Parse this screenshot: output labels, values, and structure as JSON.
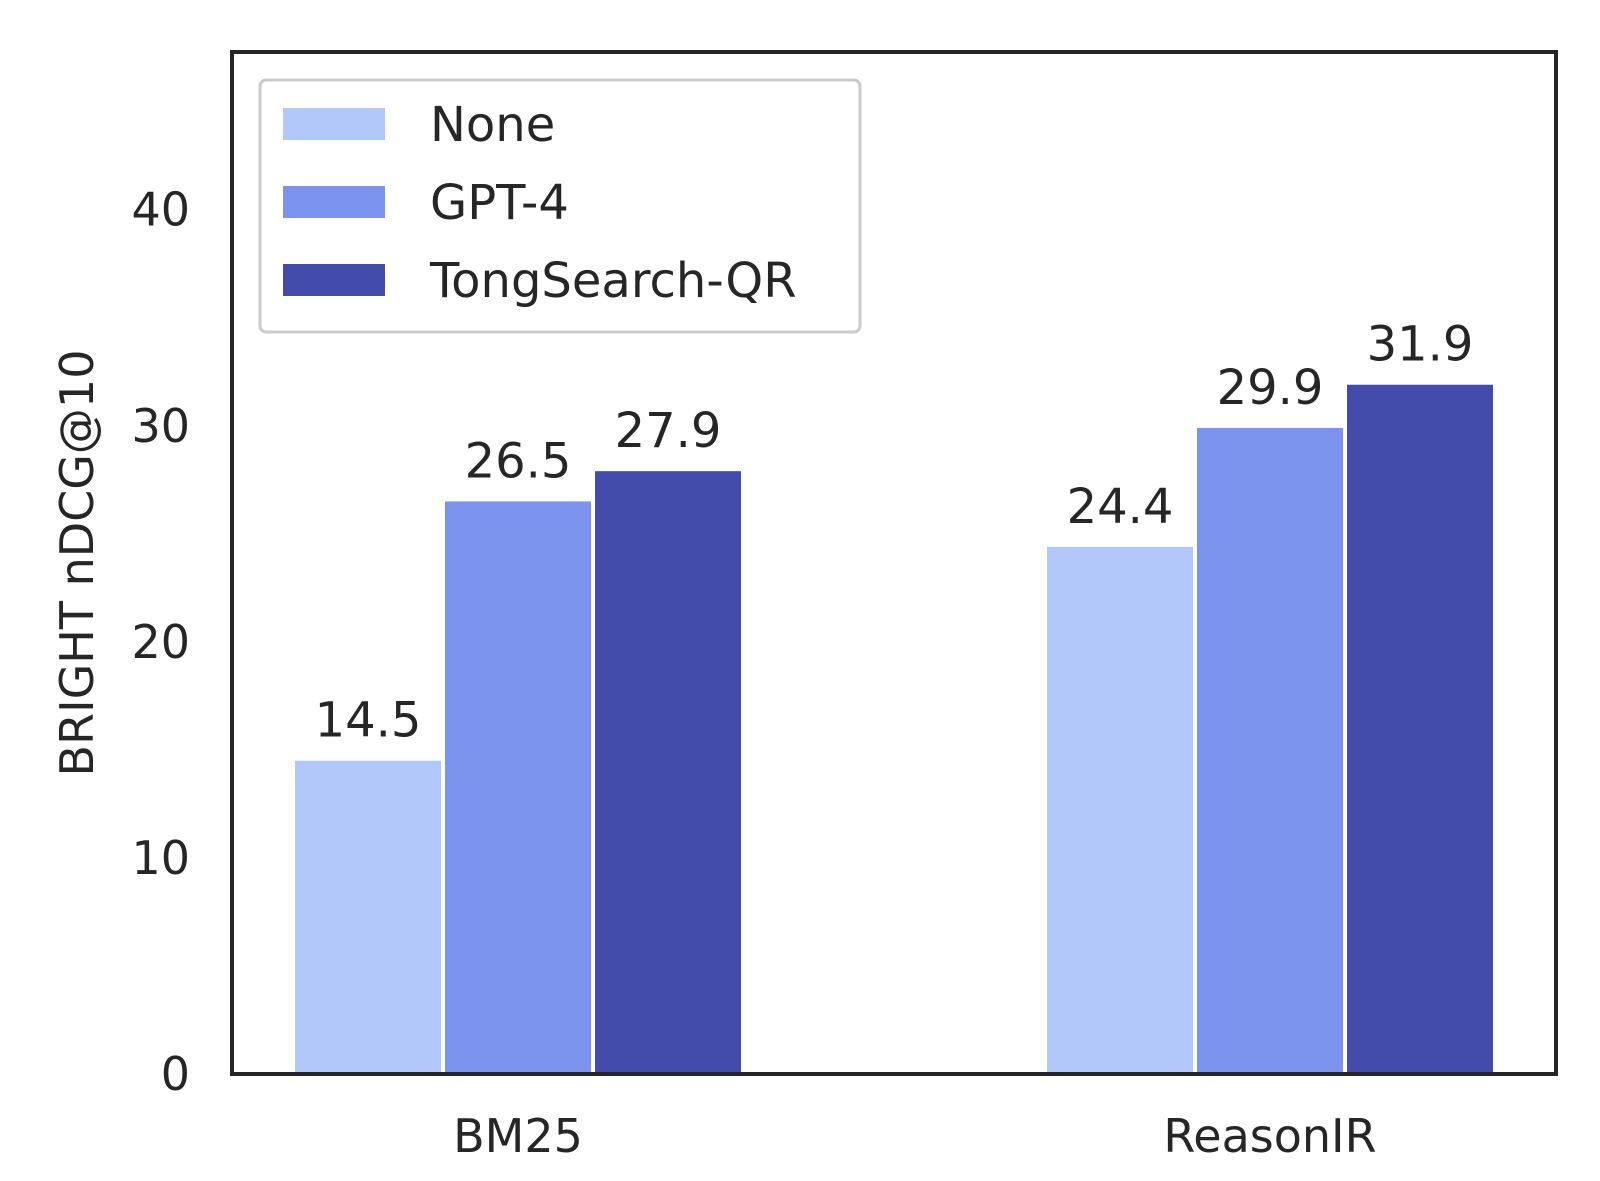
{
  "chart_data": {
    "type": "bar",
    "ylabel": "BRIGHT nDCG@10",
    "xlabel": "",
    "ylim": [
      0,
      47.3
    ],
    "yticks": [
      0,
      10,
      20,
      30,
      40
    ],
    "categories": [
      "BM25",
      "ReasonIR"
    ],
    "series": [
      {
        "name": "None",
        "values": [
          14.5,
          24.4
        ],
        "value_labels": [
          "14.5",
          "24.4"
        ],
        "color": "#b2c7fa"
      },
      {
        "name": "GPT-4",
        "values": [
          26.5,
          29.9
        ],
        "value_labels": [
          "26.5",
          "29.9"
        ],
        "color": "#7b93ec"
      },
      {
        "name": "TongSearch-QR",
        "values": [
          27.9,
          31.9
        ],
        "value_labels": [
          "27.9",
          "31.9"
        ],
        "color": "#434bab"
      }
    ],
    "grid": false,
    "legend_position": "upper-left"
  }
}
